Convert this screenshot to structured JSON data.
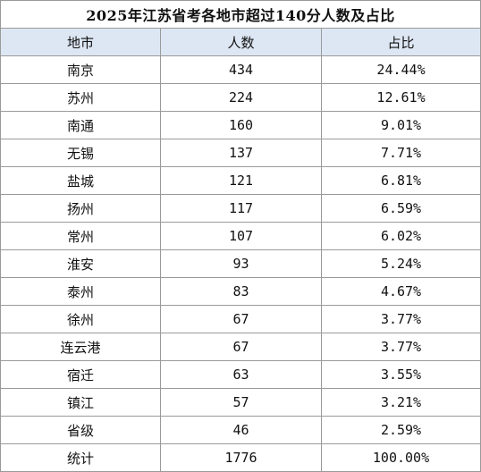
{
  "title": "2025年江苏省考各地市超过140分人数及占比",
  "headers": {
    "city": "地市",
    "count": "人数",
    "share": "占比"
  },
  "rows": [
    {
      "city": "南京",
      "count": "434",
      "share": "24.44%"
    },
    {
      "city": "苏州",
      "count": "224",
      "share": "12.61%"
    },
    {
      "city": "南通",
      "count": "160",
      "share": "9.01%"
    },
    {
      "city": "无锡",
      "count": "137",
      "share": "7.71%"
    },
    {
      "city": "盐城",
      "count": "121",
      "share": "6.81%"
    },
    {
      "city": "扬州",
      "count": "117",
      "share": "6.59%"
    },
    {
      "city": "常州",
      "count": "107",
      "share": "6.02%"
    },
    {
      "city": "淮安",
      "count": "93",
      "share": "5.24%"
    },
    {
      "city": "泰州",
      "count": "83",
      "share": "4.67%"
    },
    {
      "city": "徐州",
      "count": "67",
      "share": "3.77%"
    },
    {
      "city": "连云港",
      "count": "67",
      "share": "3.77%"
    },
    {
      "city": "宿迁",
      "count": "63",
      "share": "3.55%"
    },
    {
      "city": "镇江",
      "count": "57",
      "share": "3.21%"
    },
    {
      "city": "省级",
      "count": "46",
      "share": "2.59%"
    },
    {
      "city": "统计",
      "count": "1776",
      "share": "100.00%"
    }
  ],
  "colors": {
    "header_bg": "#dde7f4",
    "border": "#9a9a9a",
    "text": "#111111"
  }
}
